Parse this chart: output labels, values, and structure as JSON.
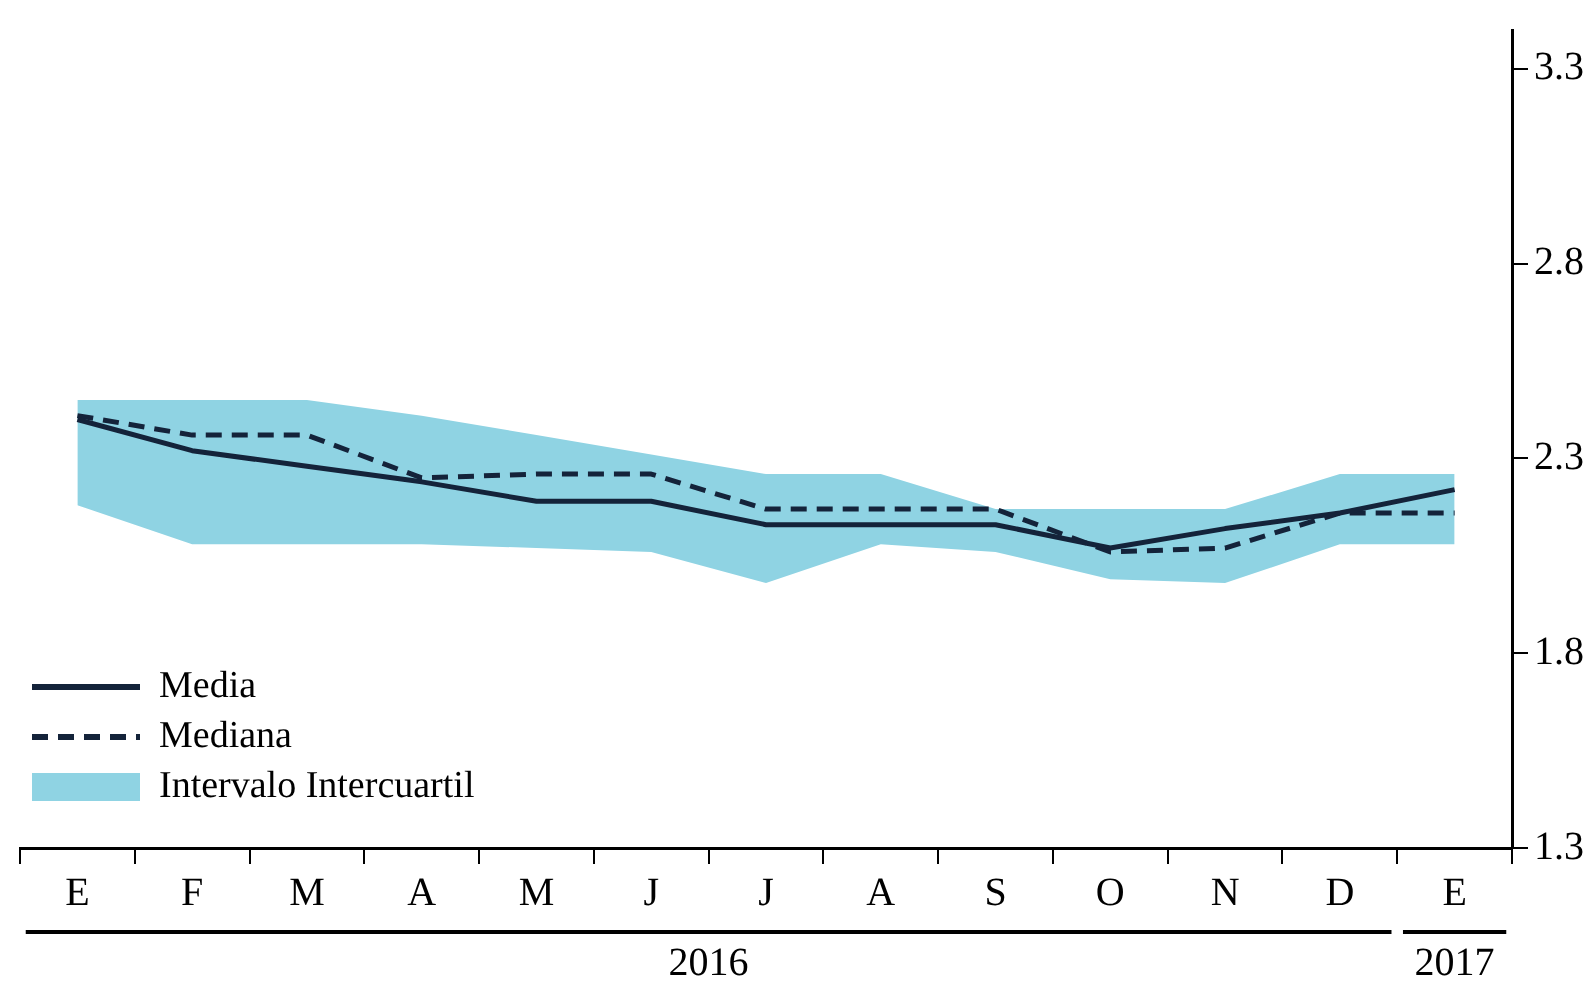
{
  "chart_data": {
    "type": "line",
    "categories": [
      "E",
      "F",
      "M",
      "A",
      "M",
      "J",
      "J",
      "A",
      "S",
      "O",
      "N",
      "D",
      "E"
    ],
    "series": [
      {
        "name": "Media",
        "color": "#14233a",
        "line_style": "solid",
        "values": [
          2.4,
          2.32,
          2.28,
          2.24,
          2.19,
          2.19,
          2.13,
          2.13,
          2.13,
          2.07,
          2.12,
          2.16,
          2.22
        ]
      },
      {
        "name": "Mediana",
        "color": "#14233a",
        "line_style": "dashed",
        "values": [
          2.41,
          2.36,
          2.36,
          2.25,
          2.26,
          2.26,
          2.17,
          2.17,
          2.17,
          2.06,
          2.07,
          2.16,
          2.16
        ]
      },
      {
        "name": "Intervalo Intercuartil",
        "type": "area",
        "color": "#8fd3e3",
        "values": [
          null,
          null,
          null,
          null,
          null,
          null,
          null,
          null,
          null,
          null,
          null,
          null,
          null
        ],
        "lower": [
          2.18,
          2.08,
          2.08,
          2.08,
          2.07,
          2.06,
          1.98,
          2.08,
          2.06,
          1.99,
          1.98,
          2.08,
          2.08
        ],
        "upper": [
          2.45,
          2.45,
          2.45,
          2.41,
          2.36,
          2.31,
          2.26,
          2.26,
          2.17,
          2.17,
          2.17,
          2.26,
          2.26
        ]
      }
    ],
    "ylim": [
      1.3,
      3.4
    ],
    "yticks": [
      1.3,
      1.8,
      2.3,
      2.8,
      3.3
    ],
    "grid": false,
    "legend": "bottom left",
    "marker": "none",
    "annotations": [
      "2016",
      "2017"
    ]
  }
}
